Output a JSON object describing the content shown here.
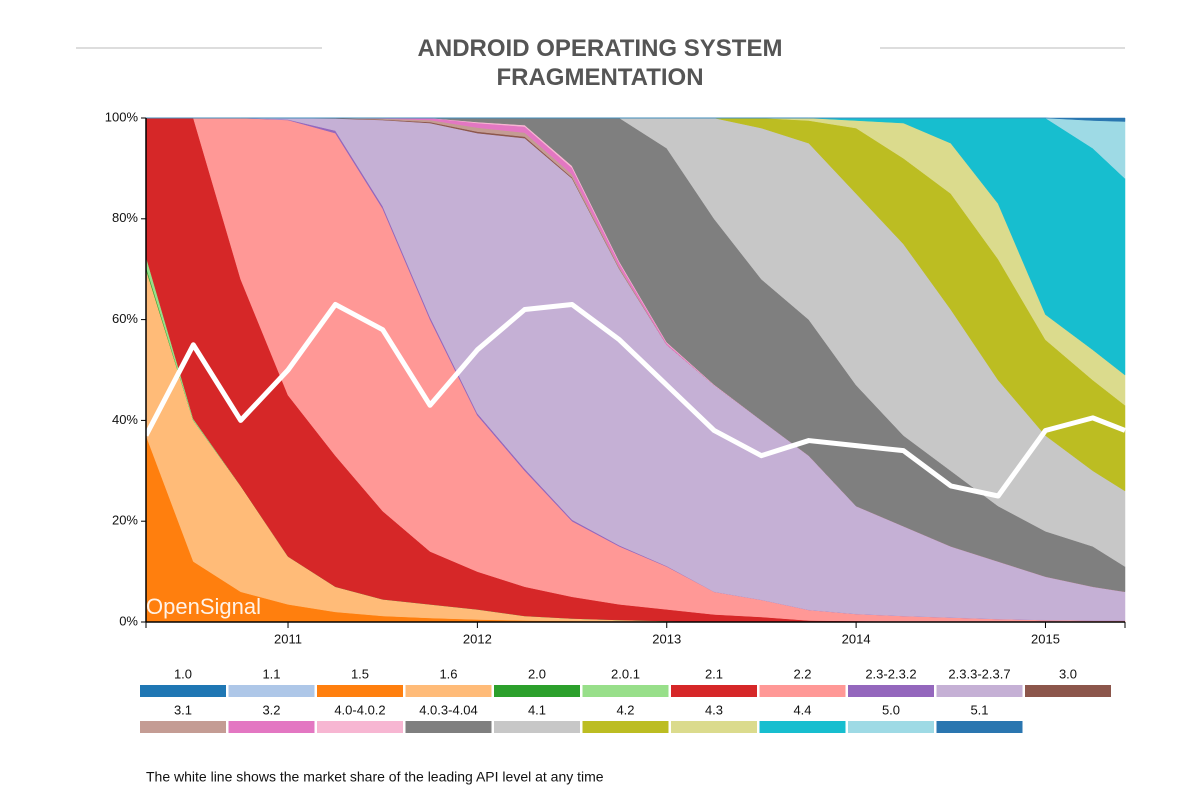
{
  "chart_data": {
    "type": "stacked_area",
    "title": "ANDROID OPERATING SYSTEM FRAGMENTATION",
    "watermark": "OpenSignal",
    "note": "The white line shows the market share of the leading API level at any time",
    "x": [
      2010.25,
      2010.5,
      2010.75,
      2011.0,
      2011.25,
      2011.5,
      2011.75,
      2012.0,
      2012.25,
      2012.5,
      2012.75,
      2013.0,
      2013.25,
      2013.5,
      2013.75,
      2014.0,
      2014.25,
      2014.5,
      2014.75,
      2015.0,
      2015.25,
      2015.42
    ],
    "xlim": [
      2010.25,
      2015.42
    ],
    "xticks": [
      2011,
      2012,
      2013,
      2014,
      2015
    ],
    "ylim": [
      0,
      100
    ],
    "yticks": [
      {
        "value": 0,
        "label": "0%"
      },
      {
        "value": 20,
        "label": "20%"
      },
      {
        "value": 40,
        "label": "40%"
      },
      {
        "value": 60,
        "label": "60%"
      },
      {
        "value": 80,
        "label": "80%"
      },
      {
        "value": 100,
        "label": "100%"
      }
    ],
    "series": [
      {
        "name": "1.0",
        "color": "#1f77b4",
        "values": [
          0,
          0,
          0,
          0,
          0,
          0,
          0,
          0,
          0,
          0,
          0,
          0,
          0,
          0,
          0,
          0,
          0,
          0,
          0,
          0,
          0,
          0
        ]
      },
      {
        "name": "1.1",
        "color": "#aec7e8",
        "values": [
          0,
          0,
          0,
          0,
          0,
          0,
          0,
          0,
          0,
          0,
          0,
          0,
          0,
          0,
          0,
          0,
          0,
          0,
          0,
          0,
          0,
          0
        ]
      },
      {
        "name": "1.5",
        "color": "#ff7f0e",
        "values": [
          37,
          12,
          6,
          3.5,
          2,
          1.2,
          0.8,
          0.5,
          0.3,
          0.2,
          0.1,
          0,
          0,
          0,
          0,
          0,
          0,
          0,
          0,
          0,
          0,
          0
        ]
      },
      {
        "name": "1.6",
        "color": "#ffbb78",
        "values": [
          33,
          28,
          21,
          9.5,
          5,
          3.3,
          2.7,
          2,
          0.9,
          0.5,
          0.3,
          0.2,
          0,
          0,
          0,
          0,
          0,
          0,
          0,
          0,
          0,
          0
        ]
      },
      {
        "name": "2.0",
        "color": "#2ca02c",
        "values": [
          0.5,
          0,
          0,
          0,
          0,
          0,
          0,
          0,
          0,
          0,
          0,
          0,
          0,
          0,
          0,
          0,
          0,
          0,
          0,
          0,
          0,
          0
        ]
      },
      {
        "name": "2.0.1",
        "color": "#98df8a",
        "values": [
          2,
          0.3,
          0,
          0,
          0,
          0,
          0,
          0,
          0,
          0,
          0,
          0,
          0,
          0,
          0,
          0,
          0,
          0,
          0,
          0,
          0,
          0
        ]
      },
      {
        "name": "2.1",
        "color": "#d62728",
        "values": [
          27.5,
          59.7,
          41,
          32,
          26,
          17.5,
          10.5,
          7.5,
          5.8,
          4.3,
          3.1,
          2.3,
          1.5,
          1,
          0.3,
          0.2,
          0.1,
          0.1,
          0.1,
          0.1,
          0.1,
          0.1
        ]
      },
      {
        "name": "2.2",
        "color": "#ff9896",
        "values": [
          0,
          0,
          32,
          54.6,
          64,
          60,
          46,
          31,
          23,
          15,
          11.5,
          8.5,
          4.5,
          3.4,
          2.1,
          1.4,
          1.1,
          0.8,
          0.5,
          0.3,
          0.2,
          0.2
        ]
      },
      {
        "name": "2.3-2.3.2",
        "color": "#9467bd",
        "values": [
          0,
          0,
          0,
          0.1,
          0.5,
          0.5,
          0.5,
          0.4,
          0.4,
          0.3,
          0.2,
          0.1,
          0,
          0,
          0,
          0,
          0,
          0,
          0,
          0,
          0,
          0
        ]
      },
      {
        "name": "2.3.3-2.3.7",
        "color": "#c5b0d5",
        "values": [
          0,
          0,
          0,
          0.3,
          2.4,
          17.1,
          38.5,
          55.6,
          65.6,
          67.7,
          54.8,
          43.9,
          41,
          35.6,
          30.6,
          21.4,
          17.8,
          14.1,
          11.4,
          8.6,
          6.7,
          5.7
        ]
      },
      {
        "name": "3.0",
        "color": "#8c564b",
        "values": [
          0,
          0,
          0,
          0,
          0.1,
          0.1,
          0.2,
          0.3,
          0.3,
          0.2,
          0.1,
          0,
          0,
          0,
          0,
          0,
          0,
          0,
          0,
          0,
          0,
          0
        ]
      },
      {
        "name": "3.1",
        "color": "#c49c94",
        "values": [
          0,
          0,
          0,
          0,
          0,
          0.2,
          0.4,
          0.8,
          0.8,
          0.6,
          0.3,
          0,
          0,
          0,
          0,
          0,
          0,
          0,
          0,
          0,
          0,
          0
        ]
      },
      {
        "name": "3.2",
        "color": "#e377c2",
        "values": [
          0,
          0,
          0,
          0,
          0,
          0.1,
          0.4,
          0.9,
          1.2,
          1.3,
          0.8,
          0.3,
          0,
          0,
          0,
          0,
          0,
          0,
          0,
          0,
          0,
          0
        ]
      },
      {
        "name": "4.0-4.0.2",
        "color": "#f7b6d2",
        "values": [
          0,
          0,
          0,
          0,
          0,
          0,
          0,
          0.2,
          0.3,
          0.4,
          0.3,
          0.2,
          0.1,
          0,
          0,
          0,
          0,
          0,
          0,
          0,
          0,
          0
        ]
      },
      {
        "name": "4.0.3-4.04",
        "color": "#7f7f7f",
        "values": [
          0,
          0,
          0,
          0,
          0,
          0,
          0,
          0.8,
          1.4,
          9.5,
          28.5,
          38.5,
          32.9,
          28,
          27,
          24,
          18,
          15,
          11,
          9,
          8,
          5
        ]
      },
      {
        "name": "4.1",
        "color": "#c7c7c7",
        "values": [
          0,
          0,
          0,
          0,
          0,
          0,
          0,
          0,
          0,
          0,
          0,
          6,
          20,
          30,
          35,
          38,
          38,
          32,
          25,
          19,
          15,
          15
        ]
      },
      {
        "name": "4.2",
        "color": "#bcbd22",
        "values": [
          0,
          0,
          0,
          0,
          0,
          0,
          0,
          0,
          0,
          0,
          0,
          0,
          0,
          2,
          4.5,
          13,
          17,
          23,
          24,
          19,
          18,
          17
        ]
      },
      {
        "name": "4.3",
        "color": "#dbdb8d",
        "values": [
          0,
          0,
          0,
          0,
          0,
          0,
          0,
          0,
          0,
          0,
          0,
          0,
          0,
          0,
          0.5,
          1.5,
          7,
          10,
          11,
          5,
          6,
          6
        ]
      },
      {
        "name": "4.4",
        "color": "#17becf",
        "values": [
          0,
          0,
          0,
          0,
          0,
          0,
          0,
          0,
          0,
          0,
          0,
          0,
          0,
          0,
          0,
          0.5,
          1,
          5,
          17,
          39,
          40,
          39
        ]
      },
      {
        "name": "5.0",
        "color": "#9edae5",
        "values": [
          0,
          0,
          0,
          0,
          0,
          0,
          0,
          0,
          0,
          0,
          0,
          0,
          0,
          0,
          0,
          0,
          0,
          0,
          0,
          0,
          5.5,
          11.3
        ]
      },
      {
        "name": "5.1",
        "color": "#2a76b0",
        "values": [
          0,
          0,
          0,
          0,
          0,
          0,
          0,
          0,
          0,
          0,
          0,
          0,
          0,
          0,
          0,
          0,
          0,
          0,
          0,
          0,
          0.5,
          0.7
        ]
      }
    ],
    "line": {
      "color": "#ffffff",
      "values": [
        37,
        55,
        40,
        50,
        63,
        58,
        43,
        54,
        62,
        63,
        56,
        47,
        38,
        33,
        36,
        35,
        34,
        27,
        25,
        38,
        40.5,
        38
      ]
    }
  }
}
